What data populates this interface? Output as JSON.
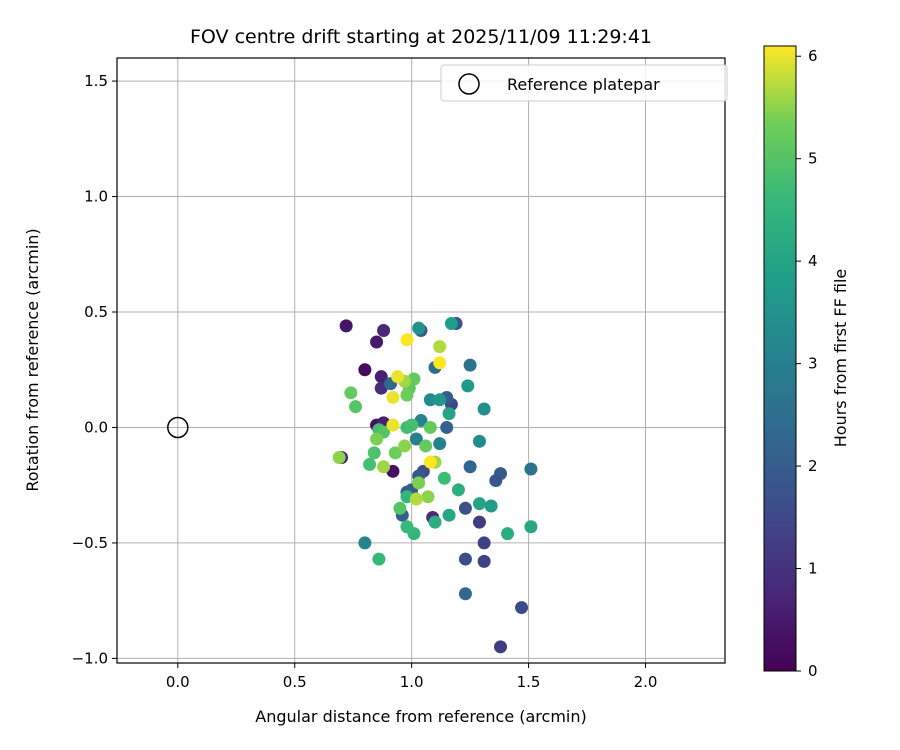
{
  "chart_data": {
    "type": "scatter",
    "title": "FOV centre drift starting at 2025/11/09 11:29:41",
    "xlabel": "Angular distance from reference (arcmin)",
    "ylabel": "Rotation from reference (arcmin)",
    "xlim": [
      -0.26,
      2.34
    ],
    "ylim": [
      -1.02,
      1.6
    ],
    "xticks": [
      0.0,
      0.5,
      1.0,
      1.5,
      2.0
    ],
    "xtick_labels": [
      "0.0",
      "0.5",
      "1.0",
      "1.5",
      "2.0"
    ],
    "yticks": [
      -1.0,
      -0.5,
      0.0,
      0.5,
      1.0,
      1.5
    ],
    "ytick_labels": [
      "−1.0",
      "−0.5",
      "0.0",
      "0.5",
      "1.0",
      "1.5"
    ],
    "grid": true,
    "legend": {
      "position": "top-right",
      "entries": [
        "Reference platepar"
      ]
    },
    "reference_point": {
      "x": 0.0,
      "y": 0.0,
      "marker": "open-circle"
    },
    "colorbar": {
      "label": "Hours from first FF file",
      "range": [
        0,
        6.1
      ],
      "ticks": [
        0,
        1,
        2,
        3,
        4,
        5,
        6
      ],
      "tick_labels": [
        "0",
        "1",
        "2",
        "3",
        "4",
        "5",
        "6"
      ],
      "colormap": "viridis"
    },
    "points": [
      [
        0.72,
        0.44,
        0.4
      ],
      [
        0.85,
        0.37,
        0.5
      ],
      [
        0.88,
        0.42,
        0.8
      ],
      [
        0.8,
        0.25,
        0.2
      ],
      [
        0.87,
        0.22,
        0.6
      ],
      [
        0.87,
        0.17,
        0.9
      ],
      [
        0.85,
        0.01,
        0.3
      ],
      [
        0.88,
        0.02,
        0.6
      ],
      [
        0.92,
        -0.19,
        0.3
      ],
      [
        0.7,
        -0.13,
        0.5
      ],
      [
        1.09,
        -0.39,
        0.8
      ],
      [
        1.38,
        -0.95,
        1.2
      ],
      [
        1.47,
        -0.78,
        1.5
      ],
      [
        1.31,
        -0.58,
        1.4
      ],
      [
        1.23,
        -0.57,
        1.6
      ],
      [
        1.31,
        -0.5,
        1.3
      ],
      [
        1.29,
        -0.41,
        1.2
      ],
      [
        1.23,
        -0.35,
        1.7
      ],
      [
        1.38,
        -0.2,
        1.9
      ],
      [
        1.36,
        -0.23,
        1.8
      ],
      [
        1.25,
        -0.17,
        2.2
      ],
      [
        1.51,
        -0.18,
        2.6
      ],
      [
        1.23,
        -0.72,
        2.3
      ],
      [
        1.04,
        0.42,
        2.0
      ],
      [
        1.19,
        0.45,
        1.7
      ],
      [
        1.17,
        0.1,
        1.5
      ],
      [
        1.15,
        0.13,
        2.0
      ],
      [
        1.15,
        0.0,
        2.1
      ],
      [
        1.05,
        -0.19,
        1.6
      ],
      [
        1.03,
        -0.21,
        1.9
      ],
      [
        1.0,
        -0.27,
        1.9
      ],
      [
        0.98,
        -0.28,
        2.0
      ],
      [
        0.96,
        -0.38,
        2.1
      ],
      [
        0.91,
        0.19,
        2.3
      ],
      [
        1.1,
        0.26,
        2.4
      ],
      [
        1.25,
        0.27,
        2.6
      ],
      [
        1.02,
        -0.05,
        2.9
      ],
      [
        1.12,
        -0.07,
        3.0
      ],
      [
        1.29,
        -0.06,
        3.3
      ],
      [
        1.31,
        0.08,
        3.4
      ],
      [
        1.04,
        0.03,
        3.1
      ],
      [
        1.08,
        0.12,
        3.3
      ],
      [
        1.12,
        0.12,
        3.6
      ],
      [
        0.8,
        -0.5,
        3.1
      ],
      [
        1.24,
        0.18,
        3.7
      ],
      [
        1.03,
        0.43,
        3.5
      ],
      [
        1.17,
        0.45,
        3.8
      ],
      [
        1.34,
        -0.34,
        3.7
      ],
      [
        1.29,
        -0.33,
        4.0
      ],
      [
        1.16,
        0.06,
        4.0
      ],
      [
        1.16,
        -0.38,
        4.1
      ],
      [
        1.41,
        -0.46,
        4.2
      ],
      [
        1.51,
        -0.43,
        4.1
      ],
      [
        1.2,
        -0.27,
        4.3
      ],
      [
        1.1,
        -0.41,
        4.3
      ],
      [
        1.01,
        -0.46,
        4.5
      ],
      [
        0.86,
        -0.57,
        4.6
      ],
      [
        0.98,
        -0.43,
        4.6
      ],
      [
        1.14,
        -0.22,
        4.7
      ],
      [
        0.98,
        -0.3,
        4.5
      ],
      [
        0.98,
        0.0,
        4.7
      ],
      [
        1.0,
        0.01,
        4.8
      ],
      [
        0.82,
        -0.16,
        4.8
      ],
      [
        0.84,
        -0.11,
        4.9
      ],
      [
        0.86,
        -0.01,
        4.8
      ],
      [
        0.88,
        -0.02,
        5.0
      ],
      [
        0.76,
        0.09,
        5.0
      ],
      [
        0.74,
        0.15,
        5.2
      ],
      [
        0.95,
        -0.35,
        5.0
      ],
      [
        0.99,
        0.17,
        5.1
      ],
      [
        0.98,
        0.14,
        5.3
      ],
      [
        1.01,
        0.21,
        5.2
      ],
      [
        1.06,
        -0.08,
        5.2
      ],
      [
        1.08,
        0.0,
        5.2
      ],
      [
        1.03,
        -0.24,
        5.4
      ],
      [
        1.07,
        -0.3,
        5.5
      ],
      [
        0.93,
        -0.11,
        5.3
      ],
      [
        0.85,
        -0.05,
        5.4
      ],
      [
        0.88,
        -0.17,
        5.6
      ],
      [
        0.97,
        -0.08,
        5.5
      ],
      [
        0.69,
        -0.13,
        5.5
      ],
      [
        1.1,
        -0.15,
        5.6
      ],
      [
        1.02,
        -0.31,
        5.7
      ],
      [
        1.12,
        0.35,
        5.7
      ],
      [
        0.97,
        0.2,
        5.6
      ],
      [
        0.92,
        0.13,
        6.0
      ],
      [
        0.94,
        0.22,
        6.0
      ],
      [
        0.92,
        0.01,
        6.0
      ],
      [
        1.12,
        0.28,
        6.1
      ],
      [
        0.98,
        0.38,
        6.1
      ],
      [
        1.08,
        -0.15,
        6.1
      ]
    ]
  }
}
